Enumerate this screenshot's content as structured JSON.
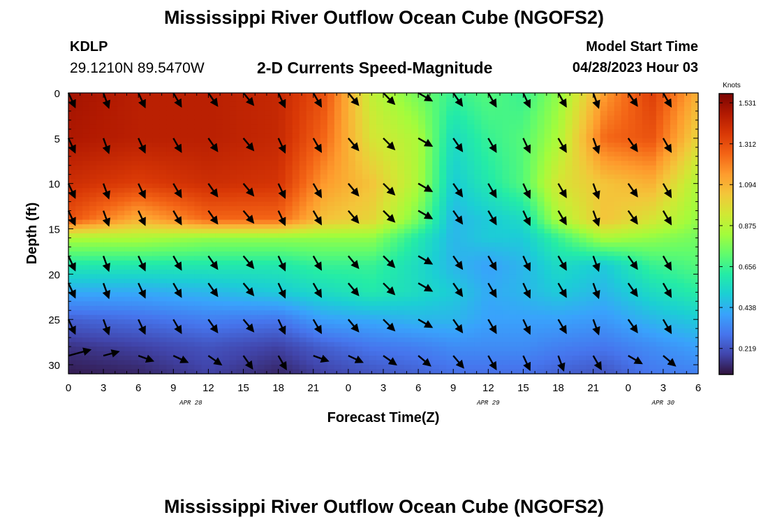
{
  "header": {
    "title": "Mississippi River Outflow Ocean Cube (NGOFS2)",
    "station_id": "KDLP",
    "station_coords": "29.1210N  89.5470W",
    "chart_title": "2-D Currents Speed-Magnitude",
    "model_start_label": "Model Start Time",
    "model_start_value": "04/28/2023 Hour 03"
  },
  "footer": {
    "title": "Mississippi River Outflow Ocean Cube (NGOFS2)"
  },
  "chart_data": {
    "type": "heatmap",
    "title": "2-D Currents Speed-Magnitude",
    "xlabel": "Forecast Time(Z)",
    "ylabel": "Depth (ft)",
    "x_tick_labels": [
      "0",
      "3",
      "6",
      "9",
      "12",
      "15",
      "18",
      "21",
      "0",
      "3",
      "6",
      "9",
      "12",
      "15",
      "18",
      "21",
      "0",
      "3",
      "6"
    ],
    "x_range_hours": [
      0,
      54
    ],
    "date_labels": [
      {
        "label": "APR 28",
        "hour": 10.5
      },
      {
        "label": "APR 29",
        "hour": 36
      },
      {
        "label": "APR 30",
        "hour": 51
      }
    ],
    "y_ticks": [
      0,
      5,
      10,
      15,
      20,
      25,
      30
    ],
    "y_range": [
      0,
      31
    ],
    "y_inverted": true,
    "colorbar": {
      "unit": "Knots",
      "labels": [
        "1.531",
        "1.312",
        "1.094",
        "0.875",
        "0.656",
        "0.438",
        "0.219"
      ],
      "min": 0.08,
      "max": 1.58,
      "colormap": [
        "#30123b",
        "#4145ab",
        "#4675ed",
        "#39a2fc",
        "#1bcfd4",
        "#24eca6",
        "#61fc6c",
        "#a4fc3b",
        "#d1e834",
        "#f3c63a",
        "#fe9b2d",
        "#f36315",
        "#d93806",
        "#b11901",
        "#7a0403"
      ]
    },
    "speed_grid": {
      "x_hours": [
        0,
        6,
        12,
        18,
        22,
        26,
        30,
        33,
        36,
        39,
        42,
        46,
        50,
        54
      ],
      "depths_ft": [
        0,
        5,
        10,
        14,
        16,
        19,
        22,
        25,
        28,
        31
      ],
      "values": [
        [
          1.5,
          1.45,
          1.45,
          1.42,
          1.3,
          0.9,
          0.75,
          0.65,
          0.7,
          0.65,
          0.8,
          1.15,
          1.35,
          1.1
        ],
        [
          1.48,
          1.45,
          1.45,
          1.42,
          1.25,
          0.95,
          0.85,
          0.55,
          0.65,
          0.7,
          0.85,
          1.25,
          1.3,
          1.0
        ],
        [
          1.4,
          1.35,
          1.4,
          1.38,
          1.15,
          1.05,
          0.85,
          0.5,
          0.6,
          0.7,
          0.95,
          1.05,
          1.1,
          0.85
        ],
        [
          1.3,
          1.1,
          1.25,
          1.25,
          1.05,
          1.0,
          0.75,
          0.45,
          0.5,
          0.55,
          0.85,
          1.05,
          0.95,
          0.8
        ],
        [
          0.85,
          0.85,
          0.8,
          0.8,
          0.8,
          0.8,
          0.6,
          0.45,
          0.5,
          0.5,
          0.65,
          0.85,
          0.8,
          0.75
        ],
        [
          0.6,
          0.6,
          0.6,
          0.6,
          0.65,
          0.65,
          0.55,
          0.45,
          0.4,
          0.45,
          0.55,
          0.5,
          0.65,
          0.7
        ],
        [
          0.42,
          0.42,
          0.45,
          0.5,
          0.55,
          0.6,
          0.55,
          0.5,
          0.42,
          0.45,
          0.5,
          0.45,
          0.55,
          0.62
        ],
        [
          0.25,
          0.28,
          0.32,
          0.3,
          0.4,
          0.42,
          0.45,
          0.45,
          0.4,
          0.4,
          0.4,
          0.38,
          0.45,
          0.5
        ],
        [
          0.15,
          0.18,
          0.22,
          0.18,
          0.25,
          0.3,
          0.32,
          0.35,
          0.35,
          0.35,
          0.32,
          0.3,
          0.35,
          0.4
        ],
        [
          0.1,
          0.12,
          0.18,
          0.12,
          0.18,
          0.22,
          0.25,
          0.28,
          0.28,
          0.28,
          0.25,
          0.22,
          0.3,
          0.32
        ]
      ]
    },
    "current_vectors": {
      "x_hours": [
        0,
        3,
        6,
        9,
        12,
        15,
        18,
        21,
        24,
        27,
        30,
        33,
        36,
        39,
        42,
        45,
        48,
        51
      ],
      "depths_ft": [
        0,
        5,
        10,
        13,
        18,
        21,
        25,
        29
      ],
      "direction_deg": [
        155,
        160,
        155,
        150,
        145,
        140,
        155,
        150,
        140,
        135,
        120,
        145,
        150,
        155,
        150,
        160,
        145,
        150
      ],
      "bottom_row_direction_deg": [
        75,
        75,
        110,
        115,
        125,
        145,
        150,
        110,
        115,
        125,
        130,
        140,
        150,
        155,
        160,
        150,
        120,
        130
      ],
      "bottom_row_first_length": 32
    }
  }
}
